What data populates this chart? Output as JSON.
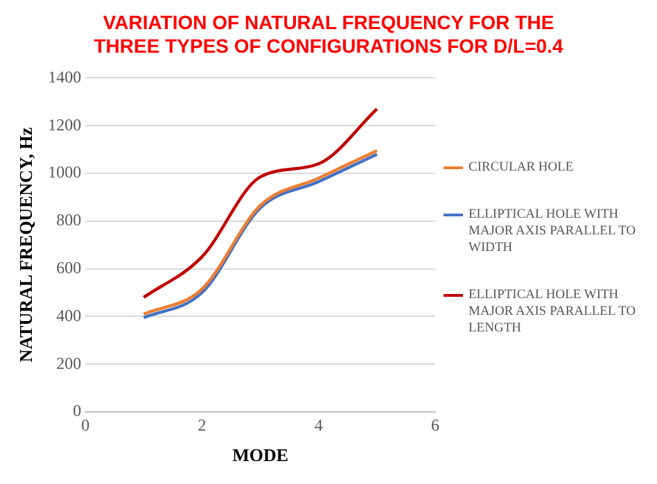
{
  "chart_data": {
    "type": "line",
    "title": "VARIATION OF NATURAL FREQUENCY FOR THE THREE TYPES OF CONFIGURATIONS FOR D/L=0.4",
    "xlabel": "MODE",
    "ylabel": "NATURAL FREQUENCY, Hz",
    "x": [
      1,
      2,
      3,
      4,
      5
    ],
    "series": [
      {
        "name": "CIRCULAR HOLE",
        "color": "#ed7d31",
        "values": [
          410,
          515,
          865,
          980,
          1095
        ]
      },
      {
        "name": "ELLIPTICAL HOLE WITH MAJOR AXIS PARALLEL TO WIDTH",
        "color": "#4472c4",
        "values": [
          395,
          500,
          855,
          965,
          1080
        ]
      },
      {
        "name": "ELLIPTICAL HOLE WITH MAJOR AXIS PARALLEL TO LENGTH",
        "color": "#c00000",
        "values": [
          480,
          650,
          985,
          1040,
          1270
        ]
      }
    ],
    "xlim": [
      0,
      6
    ],
    "xticks": [
      0,
      2,
      4,
      6
    ],
    "ylim": [
      0,
      1400
    ],
    "yticks": [
      0,
      200,
      400,
      600,
      800,
      1000,
      1200,
      1400
    ],
    "grid": "y",
    "legend": "right",
    "marker": "none",
    "line_style": "solid"
  }
}
